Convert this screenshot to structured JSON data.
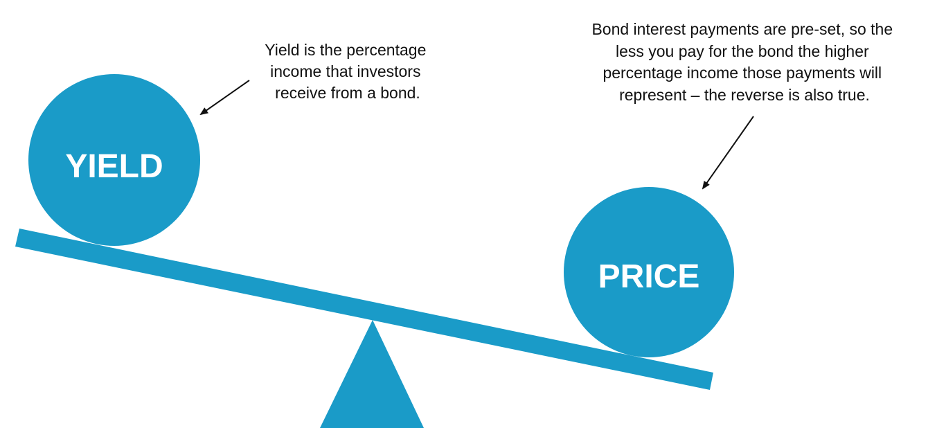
{
  "left_ball": {
    "label": "YIELD"
  },
  "right_ball": {
    "label": "PRICE"
  },
  "left_note": {
    "lines": [
      "Yield is the percentage",
      "income that investors",
      "receive from a bond."
    ]
  },
  "right_note": {
    "lines": [
      "Bond interest payments are pre-set, so the",
      "less you pay for the bond the higher",
      "percentage income those payments will",
      "represent – the reverse is also true."
    ]
  }
}
